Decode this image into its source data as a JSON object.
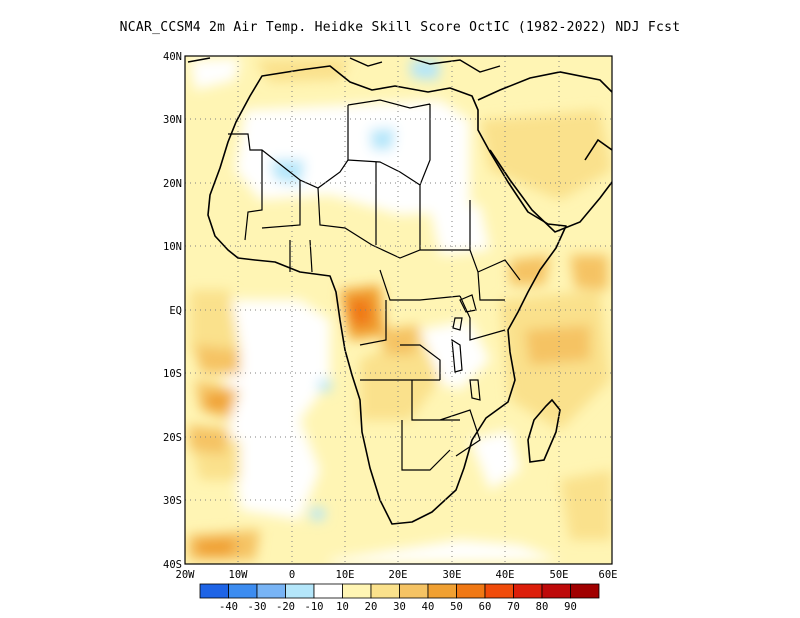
{
  "title": "NCAR_CCSM4  2m Air Temp. Heidke Skill Score OctIC (1982-2022) NDJ Fcst",
  "axes": {
    "lat_labels": [
      "40N",
      "30N",
      "20N",
      "10N",
      "EQ",
      "10S",
      "20S",
      "30S",
      "40S"
    ],
    "lon_labels": [
      "20W",
      "10W",
      "0",
      "10E",
      "20E",
      "30E",
      "40E",
      "50E",
      "60E"
    ]
  },
  "colorbar": {
    "labels": [
      "-40",
      "-30",
      "-20",
      "-10",
      "10",
      "20",
      "30",
      "40",
      "50",
      "60",
      "70",
      "80",
      "90"
    ],
    "colors": [
      "#1e64e6",
      "#3c8cf0",
      "#78b4f5",
      "#b4e6fa",
      "#ffffff",
      "#fff5b4",
      "#fae18c",
      "#f5c364",
      "#f0a032",
      "#f07814",
      "#f04b0a",
      "#dc1e0a",
      "#be0a0a",
      "#a00000"
    ]
  }
}
